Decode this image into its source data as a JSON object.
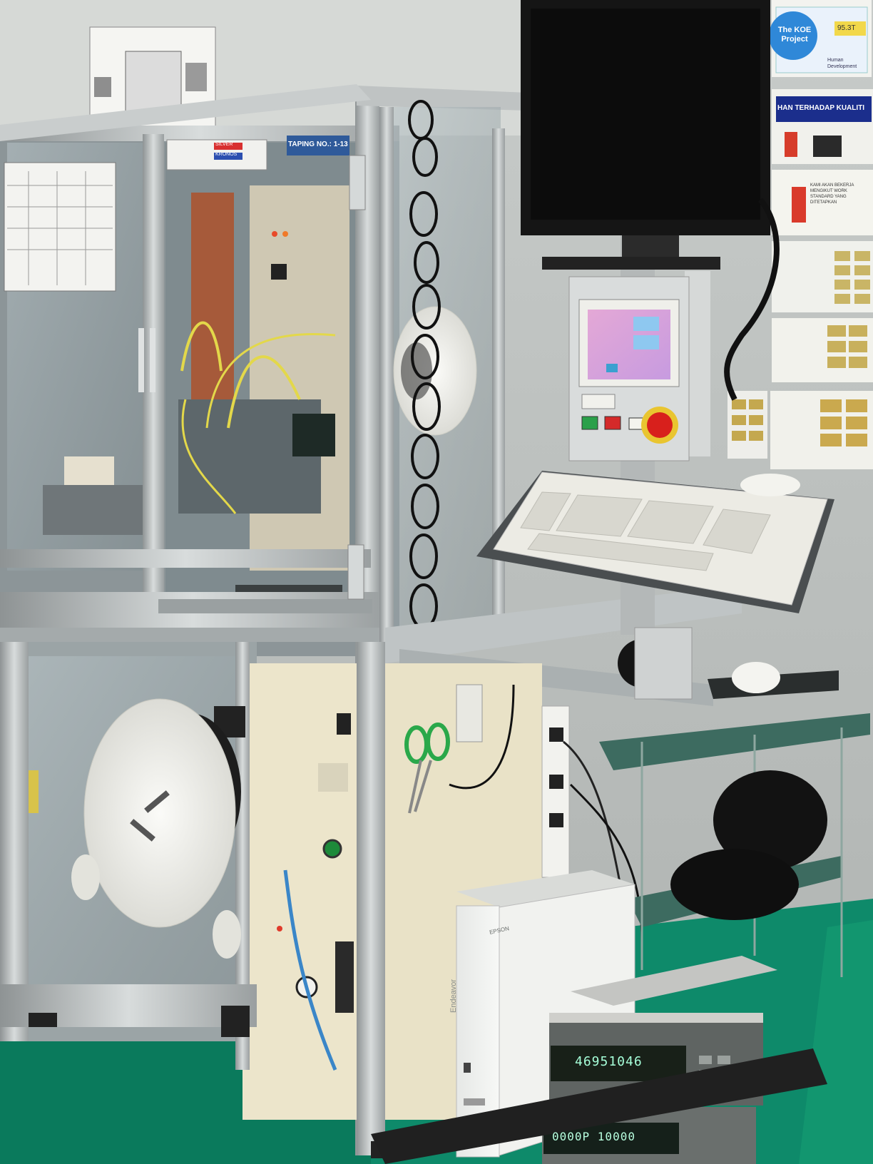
{
  "scene": {
    "subject": "taping-machine-workstation"
  },
  "machine": {
    "taping_label": "TAPING NO.: 1-13",
    "tag_red": "SILVER",
    "tag_blue": "KRONOS"
  },
  "posters": {
    "koe_title": "The KOE Project",
    "koe_badge": "95.3T",
    "koe_caption": "Human Development",
    "quality_banner": "HAN TERHADAP KUALITI",
    "standard_note": "KAMI AKAN BEKERJA MENGIKUT WORK STANDARD YANG DITETAPKAN"
  },
  "instruments": {
    "upper_display": "46951046",
    "lower_display": "0000P 10000"
  },
  "pc_tower": {
    "brand": "Endeavor",
    "badge": "EPSON"
  },
  "colors": {
    "floor": "#0e8a6a",
    "frame": "#b9bdbe",
    "panel": "#ede7cf",
    "monitor": "#151515",
    "estop": "#d8201c"
  },
  "icons": {
    "estop": "emergency-stop-icon",
    "scissors": "scissors-icon",
    "gauge": "pressure-gauge-icon"
  }
}
